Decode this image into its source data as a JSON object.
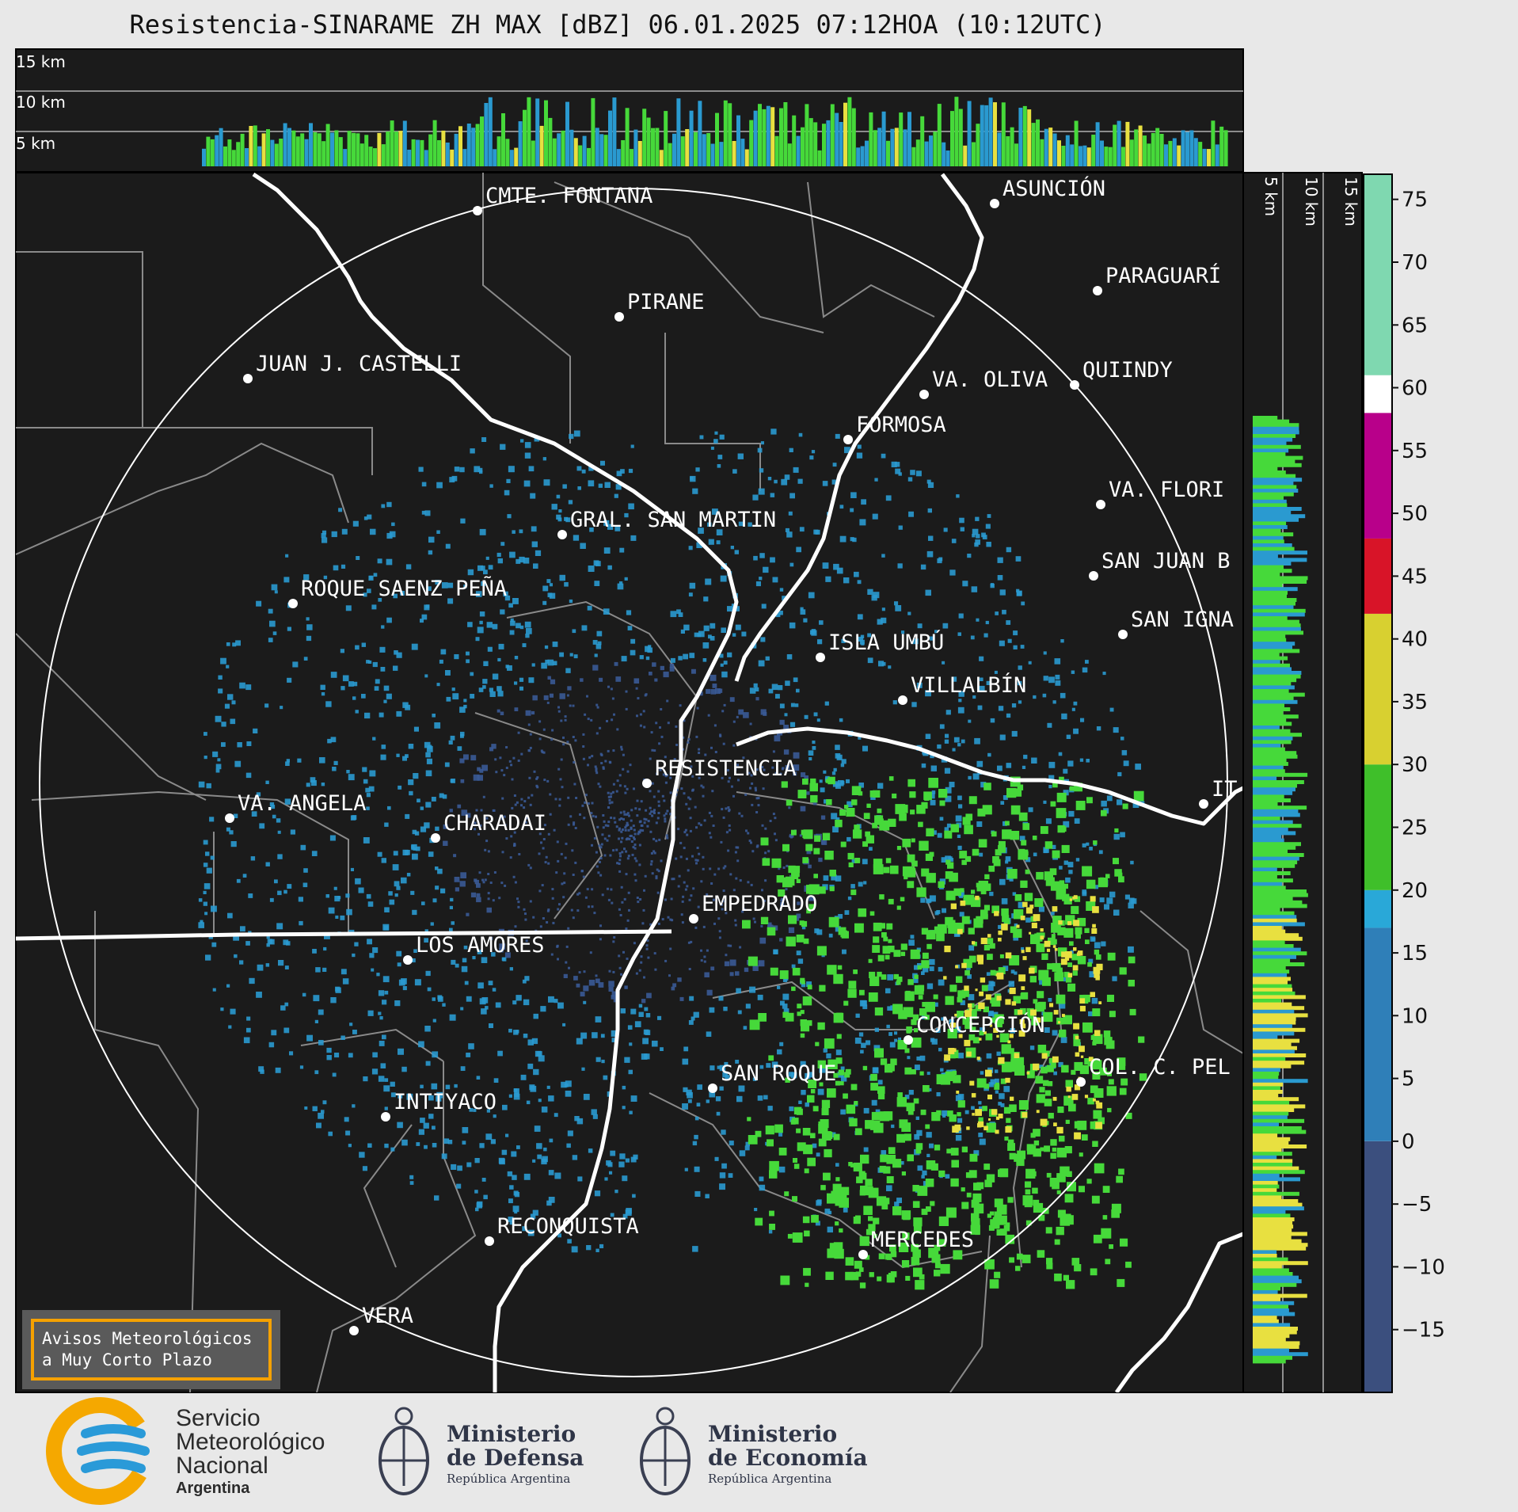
{
  "title": "Resistencia-SINARAME ZH MAX [dBZ] 06.01.2025 07:12HOA (10:12UTC)",
  "top_profile_heights": [
    "15 km",
    "10 km",
    "5 km"
  ],
  "side_profile_heights": [
    "5 km",
    "10 km",
    "15 km"
  ],
  "places": [
    {
      "name": "CMTE. FONTANA"
    },
    {
      "name": "ASUNCIÓN"
    },
    {
      "name": "PIRANE"
    },
    {
      "name": "PARAGUARÍ"
    },
    {
      "name": "JUAN J. CASTELLI"
    },
    {
      "name": "VA. OLIVA"
    },
    {
      "name": "QUIINDY"
    },
    {
      "name": "FORMOSA"
    },
    {
      "name": "VA. FLORI"
    },
    {
      "name": "GRAL. SAN MARTIN"
    },
    {
      "name": "SAN JUAN B"
    },
    {
      "name": "ROQUE SAENZ PEÑA"
    },
    {
      "name": "SAN IGNA"
    },
    {
      "name": "ISLA UMBÚ"
    },
    {
      "name": "VILLALBÍN"
    },
    {
      "name": "RESISTENCIA"
    },
    {
      "name": "VA. ANGELA"
    },
    {
      "name": "CHARADAI"
    },
    {
      "name": "IT"
    },
    {
      "name": "EMPEDRADO"
    },
    {
      "name": "LOS AMORES"
    },
    {
      "name": "CONCEPCIÓN"
    },
    {
      "name": "COL. C. PEL"
    },
    {
      "name": "SAN ROQUE"
    },
    {
      "name": "INTIYACO"
    },
    {
      "name": "RECONQUISTA"
    },
    {
      "name": "MERCEDES"
    },
    {
      "name": "VERA"
    }
  ],
  "colorbar": {
    "unit": "dBZ",
    "min": -20,
    "max": 77,
    "ticks": [
      "75",
      "70",
      "65",
      "60",
      "55",
      "50",
      "45",
      "40",
      "35",
      "30",
      "25",
      "20",
      "15",
      "10",
      "5",
      "0",
      "−5",
      "−10",
      "−15"
    ],
    "tick_values": [
      75,
      70,
      65,
      60,
      55,
      50,
      45,
      40,
      35,
      30,
      25,
      20,
      15,
      10,
      5,
      0,
      -5,
      -10,
      -15
    ],
    "bands": [
      {
        "from": -20,
        "to": 0,
        "color": "#3b4f7e"
      },
      {
        "from": 0,
        "to": 17,
        "color": "#2f7fb8"
      },
      {
        "from": 17,
        "to": 20,
        "color": "#29a8d8"
      },
      {
        "from": 20,
        "to": 30,
        "color": "#3fbf2a"
      },
      {
        "from": 30,
        "to": 42,
        "color": "#d8d030"
      },
      {
        "from": 42,
        "to": 48,
        "color": "#d81428"
      },
      {
        "from": 48,
        "to": 58,
        "color": "#b8008a"
      },
      {
        "from": 58,
        "to": 61,
        "color": "#ffffff"
      },
      {
        "from": 61,
        "to": 77,
        "color": "#7fd8b0"
      }
    ]
  },
  "notice": {
    "line1": "Avisos Meteorológicos",
    "line2": "a Muy Corto Plazo"
  },
  "logos": {
    "smn": {
      "line1": "Servicio",
      "line2": "Meteorológico",
      "line3": "Nacional",
      "line4": "Argentina"
    },
    "defensa": {
      "line1": "Ministerio",
      "line2": "de Defensa",
      "line3": "República Argentina"
    },
    "economia": {
      "line1": "Ministerio",
      "line2": "de Economía",
      "line3": "República Argentina"
    }
  },
  "colors": {
    "map_bg": "#1b1b1b",
    "border_lines": "#8a8a8a",
    "rivers": "#ffffff",
    "echo_weak": "#3a5a96",
    "echo_blue": "#2a9ad0",
    "echo_green": "#46d93a",
    "echo_yellow": "#e8e040",
    "echo_red": "#e0102a",
    "accent_orange": "#f5a100",
    "smn_blue": "#2a9ad8",
    "smn_yellow": "#f5a800"
  }
}
